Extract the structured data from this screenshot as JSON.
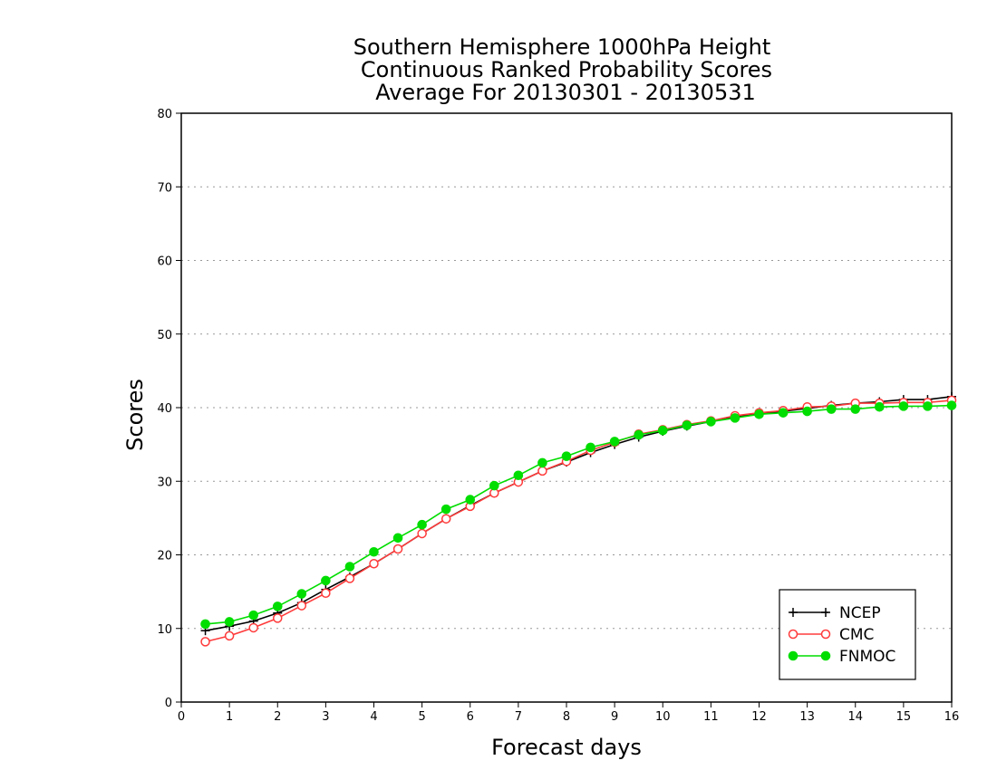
{
  "chart_data": {
    "type": "line",
    "title": [
      "Southern Hemisphere 1000hPa Height",
      "Continuous Ranked Probability Scores",
      "Average For 20130301 - 20130531"
    ],
    "xlabel": "Forecast days",
    "ylabel": "Scores",
    "xlim": [
      0,
      16
    ],
    "ylim": [
      0,
      80
    ],
    "xticks": [
      "0",
      "1",
      "2",
      "3",
      "4",
      "5",
      "6",
      "7",
      "8",
      "9",
      "10",
      "11",
      "12",
      "13",
      "14",
      "15",
      "16"
    ],
    "yticks": [
      "0",
      "10",
      "20",
      "30",
      "40",
      "50",
      "60",
      "70",
      "80"
    ],
    "grid": "horizontal dotted",
    "legend_position": "bottom-right",
    "x": [
      0.5,
      1,
      1.5,
      2,
      2.5,
      3,
      3.5,
      4,
      4.5,
      5,
      5.5,
      6,
      6.5,
      7,
      7.5,
      8,
      8.5,
      9,
      9.5,
      10,
      10.5,
      11,
      11.5,
      12,
      12.5,
      13,
      13.5,
      14,
      14.5,
      15,
      15.5,
      16
    ],
    "series": [
      {
        "name": "NCEP",
        "color": "#000000",
        "marker": "plus",
        "values": [
          9.7,
          10.3,
          11.0,
          12.1,
          13.5,
          15.3,
          17.0,
          18.8,
          20.8,
          22.9,
          24.9,
          26.7,
          28.4,
          29.9,
          31.4,
          32.6,
          33.9,
          35.0,
          36.0,
          36.8,
          37.5,
          38.1,
          38.7,
          39.2,
          39.5,
          39.9,
          40.3,
          40.6,
          40.8,
          41.1,
          41.1,
          41.5
        ]
      },
      {
        "name": "CMC",
        "color": "#ff3b3b",
        "marker": "open-circle",
        "values": [
          8.2,
          9.0,
          10.1,
          11.4,
          13.1,
          14.8,
          16.8,
          18.8,
          20.8,
          22.9,
          24.9,
          26.6,
          28.4,
          29.9,
          31.4,
          32.7,
          34.2,
          35.3,
          36.4,
          37.0,
          37.7,
          38.2,
          38.9,
          39.3,
          39.6,
          40.1,
          40.2,
          40.6,
          40.6,
          40.7,
          40.7,
          41.0
        ]
      },
      {
        "name": "FNMOC",
        "color": "#00dd00",
        "marker": "filled-circle",
        "values": [
          10.6,
          10.9,
          11.8,
          13.0,
          14.7,
          16.5,
          18.4,
          20.4,
          22.3,
          24.1,
          26.2,
          27.5,
          29.4,
          30.8,
          32.5,
          33.4,
          34.6,
          35.4,
          36.3,
          36.9,
          37.6,
          38.1,
          38.6,
          39.1,
          39.3,
          39.5,
          39.8,
          39.8,
          40.1,
          40.2,
          40.2,
          40.3
        ]
      }
    ]
  }
}
